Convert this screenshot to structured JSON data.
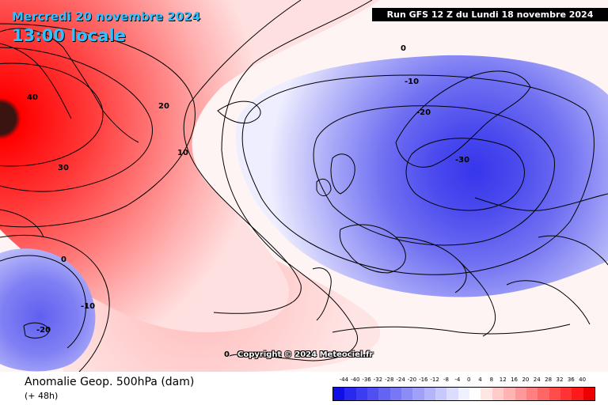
{
  "header": {
    "date": "Mercredi 20 novembre 2024",
    "time": "13:00 locale",
    "run": "Run GFS 12 Z du Lundi 18 novembre 2024"
  },
  "copyright": "Copyright © 2024 Meteociel.fr",
  "product": {
    "title": "Anomalie Geop. 500hPa (dam)",
    "subtitle": "(+ 48h)"
  },
  "legend": {
    "labels": [
      "-44",
      "-40",
      "-36",
      "-32",
      "-28",
      "-24",
      "-20",
      "-16",
      "-12",
      "-8",
      "-4",
      "0",
      "4",
      "8",
      "12",
      "16",
      "20",
      "24",
      "28",
      "32",
      "36",
      "40"
    ],
    "colors": [
      "#1010e6",
      "#2828ee",
      "#3c3cf0",
      "#5050f2",
      "#6464f2",
      "#7878f4",
      "#8c8cf6",
      "#a0a0f8",
      "#b4b4fa",
      "#c8c8fc",
      "#dcdcfe",
      "#f0f0ff",
      "#ffffff",
      "#ffe6e6",
      "#ffcccc",
      "#ffb3b3",
      "#ff9999",
      "#ff8080",
      "#ff6666",
      "#ff4d4d",
      "#ff3333",
      "#ff1a1a",
      "#ee0000"
    ]
  },
  "contours": {
    "labels": [
      "40",
      "30",
      "20",
      "10",
      "0",
      "-10",
      "-20",
      "-30",
      "0",
      "-10",
      "-20",
      "0"
    ]
  }
}
